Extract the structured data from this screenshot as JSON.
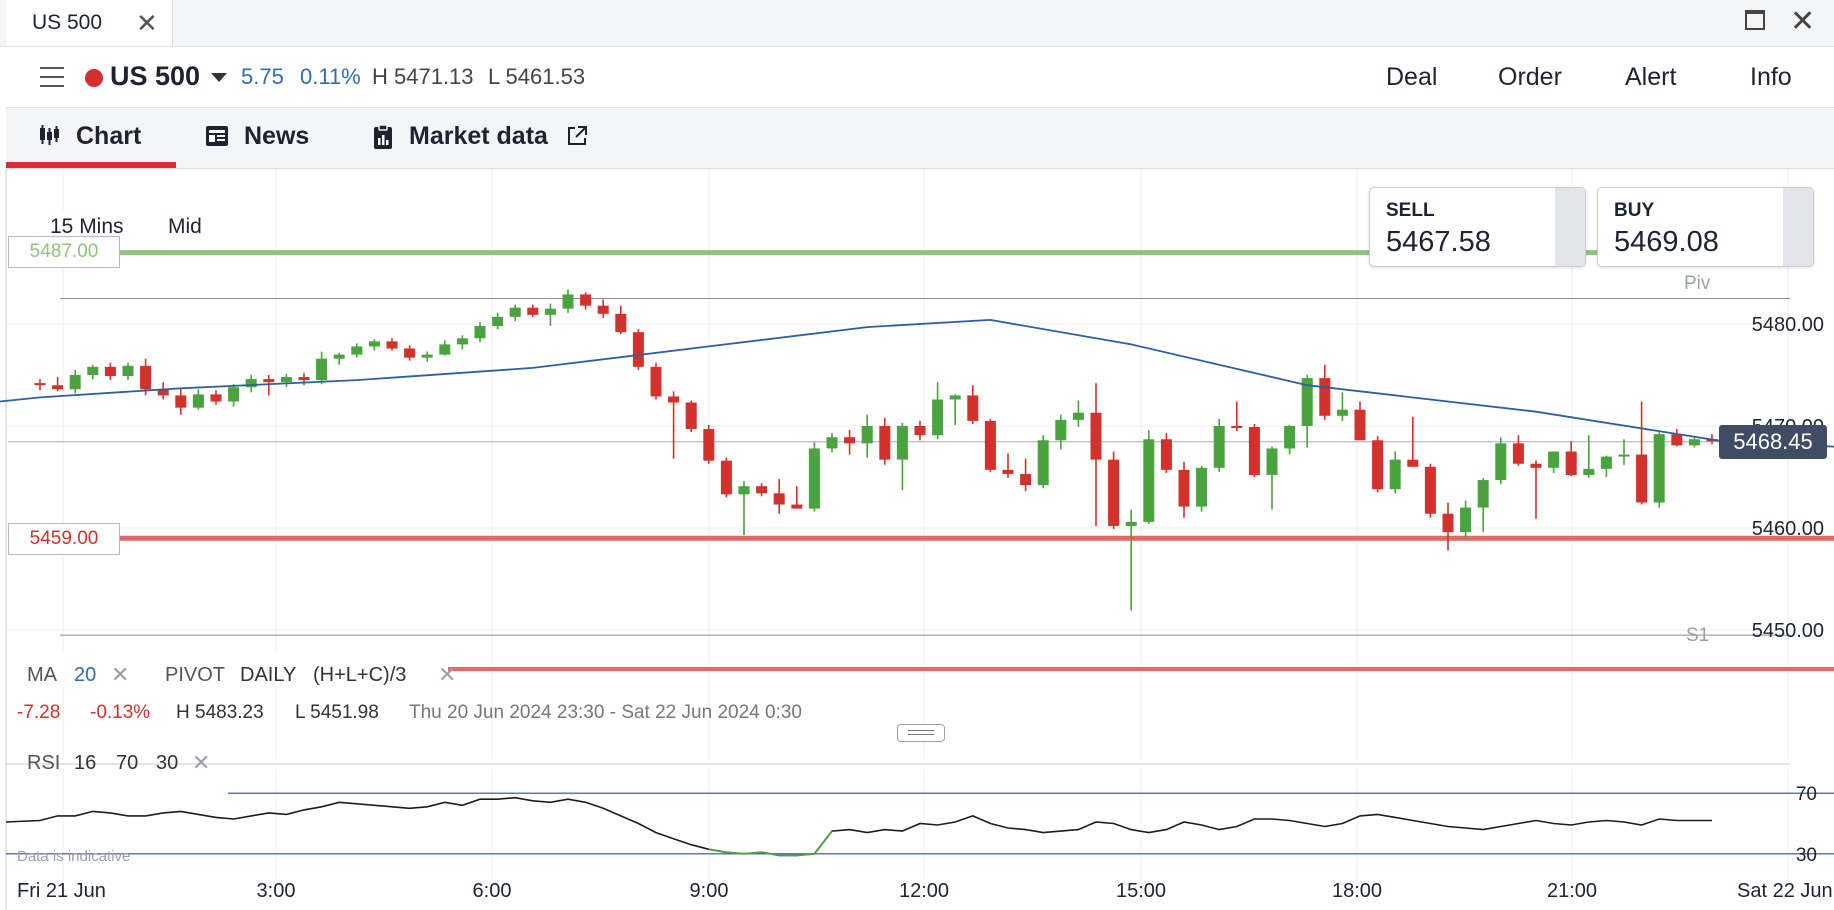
{
  "window": {
    "tab_title": "US 500",
    "tab_close_icon": "close-icon",
    "maximize_icon": "maximize-icon",
    "close_icon": "close-icon"
  },
  "header": {
    "menu_icon": "hamburger-menu-icon",
    "status_color": "#d32f2f",
    "instrument": "US 500",
    "change_abs": "5.75",
    "change_pct": "0.11%",
    "high": "H 5471.13",
    "low": "L 5461.53",
    "buttons": [
      "Deal",
      "Order",
      "Alert",
      "Info"
    ]
  },
  "subtabs": [
    {
      "label": "Chart",
      "icon": "candlestick-icon",
      "active": true
    },
    {
      "label": "News",
      "icon": "newspaper-icon",
      "active": false
    },
    {
      "label": "Market data",
      "icon": "clipboard-icon",
      "external_icon": "external-link-icon",
      "active": false
    }
  ],
  "prices": {
    "sell_label": "SELL",
    "sell_value": "5467.58",
    "buy_label": "BUY",
    "buy_value": "5469.08"
  },
  "toolbar": {
    "timeframe": "15 Mins",
    "price_mode": "Mid"
  },
  "levels": {
    "upper_alert": "5487.00",
    "lower_alert": "5459.00",
    "pivot_label": "Piv",
    "s1_label": "S1",
    "current_price": "5468.45"
  },
  "legend": {
    "ma_name": "MA",
    "ma_period": "20",
    "pivot_name": "PIVOT",
    "pivot_period": "DAILY",
    "pivot_formula": "(H+L+C)/3",
    "summary_change": "-7.28",
    "summary_pct": "-0.13%",
    "summary_high": "H 5483.23",
    "summary_low": "L 5451.98",
    "summary_range": "Thu 20 Jun 2024 23:30 - Sat 22 Jun 2024 0:30",
    "rsi_name": "RSI",
    "rsi_period": "16",
    "rsi_upper": "70",
    "rsi_lower": "30",
    "disclaimer": "Data is indicative"
  },
  "colors": {
    "up": "#4aa33f",
    "down": "#d3312b",
    "ma_line": "#2f5fa3",
    "upper_alert": "#8cc47c",
    "lower_alert": "#e06a66",
    "accent": "#d32f2f"
  },
  "chart_data": {
    "type": "candlestick",
    "timeframe": "15 Mins",
    "x_tick_labels": [
      "Fri 21 Jun",
      "3:00",
      "6:00",
      "9:00",
      "12:00",
      "15:00",
      "18:00",
      "21:00",
      "Sat 22 Jun"
    ],
    "y_tick_labels": [
      "5480.00",
      "5470.00",
      "5460.00",
      "5450.00"
    ],
    "ylim": [
      5448,
      5490
    ],
    "horizontal_levels": {
      "alert_high": 5487.0,
      "pivot": 5482.5,
      "current": 5468.45,
      "alert_low": 5459.0,
      "s1": 5449.5
    },
    "candles": [
      [
        5474.2,
        5474.6,
        5473.5,
        5474.0
      ],
      [
        5474.0,
        5474.8,
        5473.4,
        5473.6
      ],
      [
        5473.6,
        5475.5,
        5473.2,
        5475.0
      ],
      [
        5475.0,
        5476.0,
        5474.6,
        5475.8
      ],
      [
        5475.8,
        5476.2,
        5474.5,
        5474.9
      ],
      [
        5474.9,
        5476.2,
        5474.5,
        5475.9
      ],
      [
        5475.9,
        5476.6,
        5473.0,
        5473.6
      ],
      [
        5473.6,
        5474.3,
        5472.6,
        5473.0
      ],
      [
        5473.0,
        5473.6,
        5471.1,
        5471.8
      ],
      [
        5471.8,
        5473.6,
        5471.6,
        5473.1
      ],
      [
        5473.1,
        5473.5,
        5472.1,
        5472.4
      ],
      [
        5472.4,
        5474.1,
        5471.9,
        5473.8
      ],
      [
        5473.8,
        5475.0,
        5473.3,
        5474.6
      ],
      [
        5474.6,
        5475.0,
        5473.0,
        5474.3
      ],
      [
        5474.3,
        5475.1,
        5473.8,
        5474.8
      ],
      [
        5474.8,
        5475.2,
        5474.0,
        5474.5
      ],
      [
        5474.5,
        5477.3,
        5474.1,
        5476.6
      ],
      [
        5476.6,
        5477.2,
        5476.0,
        5477.0
      ],
      [
        5477.0,
        5478.1,
        5476.7,
        5477.8
      ],
      [
        5477.8,
        5478.5,
        5477.4,
        5478.3
      ],
      [
        5478.3,
        5478.6,
        5477.4,
        5477.6
      ],
      [
        5477.6,
        5477.9,
        5476.4,
        5476.7
      ],
      [
        5476.7,
        5477.3,
        5476.3,
        5477.0
      ],
      [
        5477.0,
        5478.4,
        5476.9,
        5478.0
      ],
      [
        5478.0,
        5478.9,
        5477.5,
        5478.6
      ],
      [
        5478.6,
        5480.2,
        5478.2,
        5479.8
      ],
      [
        5479.8,
        5481.1,
        5479.5,
        5480.7
      ],
      [
        5480.7,
        5481.9,
        5480.3,
        5481.6
      ],
      [
        5481.6,
        5481.9,
        5480.7,
        5480.9
      ],
      [
        5480.9,
        5482.0,
        5479.8,
        5481.5
      ],
      [
        5481.5,
        5483.4,
        5481.1,
        5482.9
      ],
      [
        5482.9,
        5483.1,
        5481.4,
        5481.8
      ],
      [
        5481.8,
        5482.4,
        5480.6,
        5481.0
      ],
      [
        5481.0,
        5481.8,
        5479.0,
        5479.2
      ],
      [
        5479.2,
        5479.5,
        5475.5,
        5475.8
      ],
      [
        5475.8,
        5476.2,
        5472.6,
        5472.9
      ],
      [
        5472.9,
        5473.4,
        5466.8,
        5472.3
      ],
      [
        5472.3,
        5472.5,
        5469.4,
        5469.7
      ],
      [
        5469.7,
        5470.1,
        5466.3,
        5466.6
      ],
      [
        5466.6,
        5466.9,
        5463.0,
        5463.3
      ],
      [
        5463.3,
        5464.6,
        5459.3,
        5464.1
      ],
      [
        5464.1,
        5464.4,
        5463.1,
        5463.4
      ],
      [
        5463.4,
        5464.8,
        5461.4,
        5462.3
      ],
      [
        5462.3,
        5464.1,
        5461.9,
        5461.9
      ],
      [
        5461.9,
        5468.4,
        5461.6,
        5467.8
      ],
      [
        5467.8,
        5469.3,
        5467.4,
        5468.9
      ],
      [
        5468.9,
        5469.6,
        5467.2,
        5468.3
      ],
      [
        5468.3,
        5471.1,
        5466.9,
        5470.0
      ],
      [
        5470.0,
        5470.8,
        5466.2,
        5466.7
      ],
      [
        5466.7,
        5470.3,
        5463.7,
        5470.0
      ],
      [
        5470.0,
        5470.5,
        5468.6,
        5469.1
      ],
      [
        5469.1,
        5474.3,
        5468.7,
        5472.6
      ],
      [
        5472.6,
        5473.1,
        5470.1,
        5473.0
      ],
      [
        5473.0,
        5474.0,
        5470.2,
        5470.5
      ],
      [
        5470.5,
        5470.7,
        5465.5,
        5465.7
      ],
      [
        5465.7,
        5467.3,
        5464.9,
        5465.3
      ],
      [
        5465.3,
        5466.8,
        5463.6,
        5464.2
      ],
      [
        5464.2,
        5469.1,
        5463.9,
        5468.6
      ],
      [
        5468.6,
        5471.1,
        5467.7,
        5470.6
      ],
      [
        5470.6,
        5472.5,
        5469.9,
        5471.3
      ],
      [
        5471.3,
        5474.2,
        5460.2,
        5466.7
      ],
      [
        5466.7,
        5467.5,
        5459.9,
        5460.2
      ],
      [
        5460.2,
        5461.8,
        5451.9,
        5460.6
      ],
      [
        5460.6,
        5469.6,
        5460.4,
        5468.7
      ],
      [
        5468.7,
        5469.3,
        5465.4,
        5465.7
      ],
      [
        5465.7,
        5466.5,
        5461.0,
        5462.1
      ],
      [
        5462.1,
        5466.1,
        5461.6,
        5465.9
      ],
      [
        5465.9,
        5470.7,
        5465.5,
        5470.0
      ],
      [
        5470.0,
        5472.4,
        5469.5,
        5469.9
      ],
      [
        5469.9,
        5470.2,
        5465.0,
        5465.2
      ],
      [
        5465.2,
        5468.0,
        5461.8,
        5467.8
      ],
      [
        5467.8,
        5470.1,
        5467.2,
        5470.0
      ],
      [
        5470.0,
        5475.0,
        5467.9,
        5474.7
      ],
      [
        5474.7,
        5476.0,
        5470.6,
        5471.0
      ],
      [
        5471.0,
        5473.3,
        5470.5,
        5471.6
      ],
      [
        5471.6,
        5472.4,
        5468.9,
        5468.6
      ],
      [
        5468.6,
        5469.0,
        5463.5,
        5463.8
      ],
      [
        5463.8,
        5467.5,
        5463.4,
        5466.7
      ],
      [
        5466.7,
        5470.9,
        5466.1,
        5466.0
      ],
      [
        5466.0,
        5466.3,
        5461.0,
        5461.4
      ],
      [
        5461.4,
        5462.5,
        5457.8,
        5459.6
      ],
      [
        5459.6,
        5462.7,
        5459.0,
        5462.0
      ],
      [
        5462.0,
        5464.9,
        5459.6,
        5464.7
      ],
      [
        5464.7,
        5468.9,
        5464.3,
        5468.3
      ],
      [
        5468.3,
        5469.1,
        5466.1,
        5466.3
      ],
      [
        5466.3,
        5466.6,
        5460.9,
        5465.9
      ],
      [
        5465.9,
        5467.2,
        5465.4,
        5467.5
      ],
      [
        5467.5,
        5468.5,
        5465.1,
        5465.2
      ],
      [
        5465.2,
        5469.1,
        5464.9,
        5465.8
      ],
      [
        5465.8,
        5467.1,
        5465.0,
        5467.0
      ],
      [
        5467.0,
        5468.7,
        5466.2,
        5467.2
      ],
      [
        5467.2,
        5472.4,
        5462.3,
        5462.5
      ],
      [
        5462.5,
        5469.4,
        5462.0,
        5469.2
      ],
      [
        5469.2,
        5469.7,
        5468.0,
        5468.1
      ],
      [
        5468.1,
        5469.0,
        5467.9,
        5468.7
      ],
      [
        5468.7,
        5469.2,
        5468.2,
        5468.5
      ]
    ],
    "ma20": [
      [
        0,
        5472.8
      ],
      [
        8,
        5473.7
      ],
      [
        18,
        5474.5
      ],
      [
        28,
        5475.7
      ],
      [
        38,
        5477.8
      ],
      [
        47,
        5479.7
      ],
      [
        54,
        5480.4
      ],
      [
        62,
        5478.0
      ],
      [
        72,
        5474.0
      ],
      [
        85,
        5471.4
      ],
      [
        96,
        5468.4
      ],
      [
        110,
        5467.4
      ],
      [
        120,
        5467.6
      ],
      [
        135,
        5467.2
      ],
      [
        148,
        5467.0
      ],
      [
        160,
        5466.7
      ],
      [
        174,
        5466.2
      ],
      [
        183,
        5465.8
      ]
    ],
    "rsi": {
      "values": [
        52,
        55,
        55,
        58,
        57,
        55,
        55,
        57,
        58,
        56,
        54,
        53,
        55,
        57,
        56,
        59,
        61,
        64,
        63,
        62,
        61,
        60,
        61,
        64,
        62,
        66,
        66,
        67,
        65,
        64,
        66,
        64,
        60,
        55,
        50,
        44,
        40,
        36,
        33,
        31,
        30,
        31,
        29,
        29,
        30,
        45,
        46,
        44,
        46,
        45,
        50,
        49,
        51,
        55,
        50,
        47,
        46,
        44,
        45,
        46,
        51,
        50,
        46,
        44,
        46,
        51,
        49,
        46,
        48,
        53,
        53,
        52,
        50,
        48,
        50,
        55,
        56,
        54,
        52,
        50,
        48,
        47,
        46,
        48,
        50,
        52,
        50,
        49,
        51,
        52,
        51,
        49,
        53,
        52,
        52,
        52
      ],
      "upper": 70,
      "lower": 30
    }
  }
}
